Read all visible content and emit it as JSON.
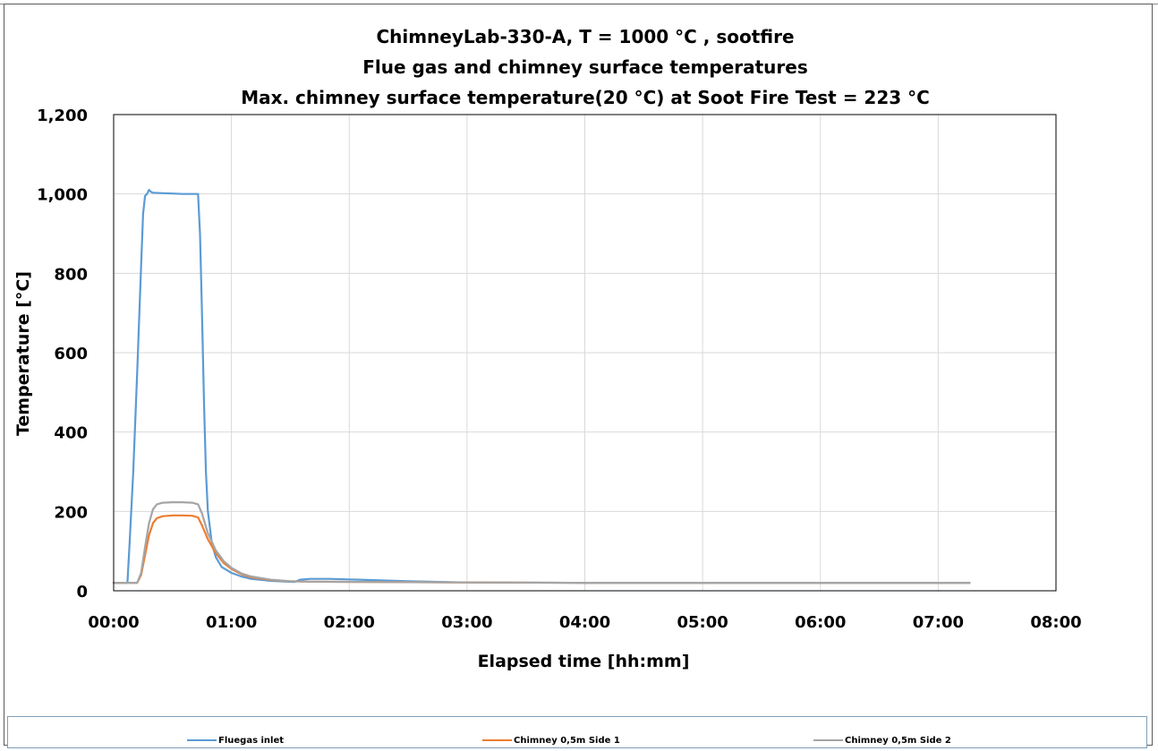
{
  "chart_data": {
    "type": "line",
    "title": [
      "ChimneyLab-330-A, T = 1000 °C , sootfire",
      "Flue gas and chimney surface temperatures",
      "Max. chimney surface temperature(20 °C) at Soot Fire Test =   223 °C"
    ],
    "xlabel": "Elapsed time [hh:mm]",
    "ylabel": "Temperature  [°C]",
    "xlim_minutes": [
      0,
      480
    ],
    "ylim": [
      0,
      1200
    ],
    "x_ticks": [
      "00:00",
      "01:00",
      "02:00",
      "03:00",
      "04:00",
      "05:00",
      "06:00",
      "07:00",
      "08:00"
    ],
    "y_ticks": [
      "0",
      "200",
      "400",
      "600",
      "800",
      "1,000",
      "1,200"
    ],
    "grid": true,
    "legend_position": "bottom",
    "series": [
      {
        "name": "Fluegas inlet",
        "color": "#5b9bd5",
        "points": [
          [
            0,
            20
          ],
          [
            7,
            20
          ],
          [
            8,
            110
          ],
          [
            10,
            300
          ],
          [
            12,
            550
          ],
          [
            14,
            820
          ],
          [
            15,
            950
          ],
          [
            16,
            995
          ],
          [
            17,
            1000
          ],
          [
            18,
            1010
          ],
          [
            19,
            1005
          ],
          [
            20,
            1003
          ],
          [
            25,
            1002
          ],
          [
            30,
            1001
          ],
          [
            35,
            1000
          ],
          [
            40,
            1000
          ],
          [
            43,
            1000
          ],
          [
            44,
            900
          ],
          [
            45,
            700
          ],
          [
            46,
            480
          ],
          [
            47,
            300
          ],
          [
            48,
            200
          ],
          [
            50,
            120
          ],
          [
            52,
            85
          ],
          [
            55,
            60
          ],
          [
            60,
            45
          ],
          [
            65,
            36
          ],
          [
            70,
            30
          ],
          [
            80,
            25
          ],
          [
            92,
            22
          ],
          [
            95,
            28
          ],
          [
            100,
            30
          ],
          [
            110,
            30
          ],
          [
            125,
            28
          ],
          [
            150,
            24
          ],
          [
            180,
            21
          ],
          [
            240,
            20
          ],
          [
            300,
            20
          ],
          [
            436,
            20
          ]
        ]
      },
      {
        "name": "Chimney 0,5m Side 1",
        "color": "#ed7d31",
        "points": [
          [
            0,
            20
          ],
          [
            12,
            20
          ],
          [
            14,
            40
          ],
          [
            16,
            90
          ],
          [
            18,
            140
          ],
          [
            20,
            170
          ],
          [
            22,
            183
          ],
          [
            25,
            188
          ],
          [
            30,
            190
          ],
          [
            35,
            190
          ],
          [
            40,
            189
          ],
          [
            43,
            185
          ],
          [
            45,
            165
          ],
          [
            48,
            130
          ],
          [
            52,
            95
          ],
          [
            56,
            70
          ],
          [
            60,
            55
          ],
          [
            65,
            42
          ],
          [
            70,
            34
          ],
          [
            80,
            27
          ],
          [
            90,
            24
          ],
          [
            100,
            23
          ],
          [
            130,
            22
          ],
          [
            180,
            21
          ],
          [
            240,
            20
          ],
          [
            436,
            20
          ]
        ]
      },
      {
        "name": "Chimney 0,5m Side 2",
        "color": "#a5a5a5",
        "points": [
          [
            0,
            20
          ],
          [
            12,
            20
          ],
          [
            14,
            45
          ],
          [
            16,
            110
          ],
          [
            18,
            170
          ],
          [
            20,
            205
          ],
          [
            22,
            218
          ],
          [
            25,
            222
          ],
          [
            30,
            223
          ],
          [
            35,
            223
          ],
          [
            40,
            222
          ],
          [
            43,
            218
          ],
          [
            45,
            195
          ],
          [
            48,
            145
          ],
          [
            52,
            102
          ],
          [
            56,
            75
          ],
          [
            60,
            58
          ],
          [
            65,
            44
          ],
          [
            70,
            36
          ],
          [
            80,
            28
          ],
          [
            90,
            24
          ],
          [
            100,
            23
          ],
          [
            130,
            22
          ],
          [
            180,
            21
          ],
          [
            240,
            20
          ],
          [
            436,
            20
          ]
        ]
      }
    ]
  }
}
